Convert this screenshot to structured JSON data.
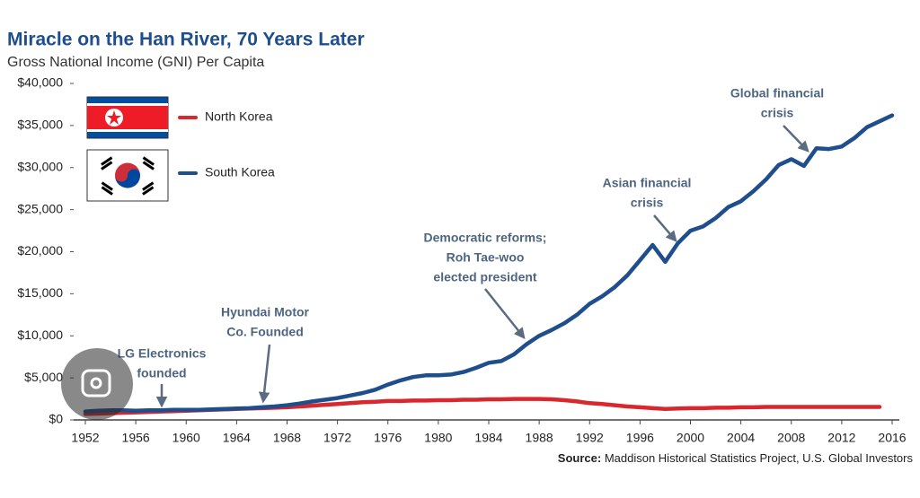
{
  "chart_data": {
    "type": "line",
    "title": "Miracle on the Han River, 70 Years Later",
    "subtitle": "Gross National Income (GNI) Per Capita",
    "source_label": "Source:",
    "source": "Maddison Historical Statistics Project, U.S. Global Investors",
    "x": [
      1952,
      1953,
      1954,
      1955,
      1956,
      1957,
      1958,
      1959,
      1960,
      1961,
      1962,
      1963,
      1964,
      1965,
      1966,
      1967,
      1968,
      1969,
      1970,
      1971,
      1972,
      1973,
      1974,
      1975,
      1976,
      1977,
      1978,
      1979,
      1980,
      1981,
      1982,
      1983,
      1984,
      1985,
      1986,
      1987,
      1988,
      1989,
      1990,
      1991,
      1992,
      1993,
      1994,
      1995,
      1996,
      1997,
      1998,
      1999,
      2000,
      2001,
      2002,
      2003,
      2004,
      2005,
      2006,
      2007,
      2008,
      2009,
      2010,
      2011,
      2012,
      2013,
      2014,
      2015,
      2016
    ],
    "series": [
      {
        "name": "North Korea",
        "color": "#d9272e",
        "values": [
          700,
          750,
          800,
          850,
          900,
          950,
          1000,
          1050,
          1100,
          1150,
          1200,
          1250,
          1300,
          1350,
          1400,
          1450,
          1500,
          1600,
          1700,
          1800,
          1900,
          2000,
          2100,
          2150,
          2250,
          2250,
          2300,
          2300,
          2350,
          2350,
          2400,
          2400,
          2450,
          2450,
          2500,
          2500,
          2500,
          2450,
          2350,
          2200,
          2000,
          1900,
          1750,
          1600,
          1500,
          1400,
          1300,
          1350,
          1400,
          1400,
          1450,
          1450,
          1500,
          1500,
          1550,
          1550,
          1550,
          1550,
          1550,
          1550,
          1550,
          1550,
          1550,
          1550,
          null
        ]
      },
      {
        "name": "South Korea",
        "color": "#1f4e8c",
        "values": [
          1000,
          1100,
          1150,
          1150,
          1100,
          1150,
          1150,
          1200,
          1200,
          1200,
          1250,
          1300,
          1350,
          1400,
          1500,
          1600,
          1750,
          1950,
          2200,
          2400,
          2600,
          2900,
          3200,
          3600,
          4200,
          4700,
          5100,
          5300,
          5300,
          5400,
          5700,
          6200,
          6800,
          7000,
          7800,
          9000,
          10000,
          10700,
          11500,
          12500,
          13800,
          14700,
          15800,
          17200,
          19000,
          20800,
          18800,
          21000,
          22500,
          23000,
          24000,
          25300,
          26000,
          27200,
          28600,
          30300,
          31000,
          30200,
          32300,
          32200,
          32500,
          33500,
          34800,
          35500,
          36200
        ]
      }
    ],
    "xlim": [
      1952,
      2016
    ],
    "xticks": [
      1952,
      1956,
      1960,
      1964,
      1968,
      1972,
      1976,
      1980,
      1984,
      1988,
      1992,
      1996,
      2000,
      2004,
      2008,
      2012,
      2016
    ],
    "ylim": [
      0,
      40000
    ],
    "yticks": [
      {
        "value": 0,
        "label": "$0"
      },
      {
        "value": 5000,
        "label": "$5,000"
      },
      {
        "value": 10000,
        "label": "$10,000"
      },
      {
        "value": 15000,
        "label": "$15,000"
      },
      {
        "value": 20000,
        "label": "$20,000"
      },
      {
        "value": 25000,
        "label": "$25,000"
      },
      {
        "value": 30000,
        "label": "$30,000"
      },
      {
        "value": 35000,
        "label": "$35,000"
      },
      {
        "value": 40000,
        "label": "$40,000"
      }
    ],
    "grid": false,
    "legend": "upper left",
    "annotations": [
      {
        "lines": [
          "LG Electronics",
          "founded"
        ]
      },
      {
        "lines": [
          "Hyundai Motor",
          "Co. Founded"
        ]
      },
      {
        "lines": [
          "Democratic reforms;",
          "Roh Tae-woo",
          "elected president"
        ]
      },
      {
        "lines": [
          "Asian financial",
          "crisis"
        ]
      },
      {
        "lines": [
          "Global financial",
          "crisis"
        ]
      }
    ]
  }
}
